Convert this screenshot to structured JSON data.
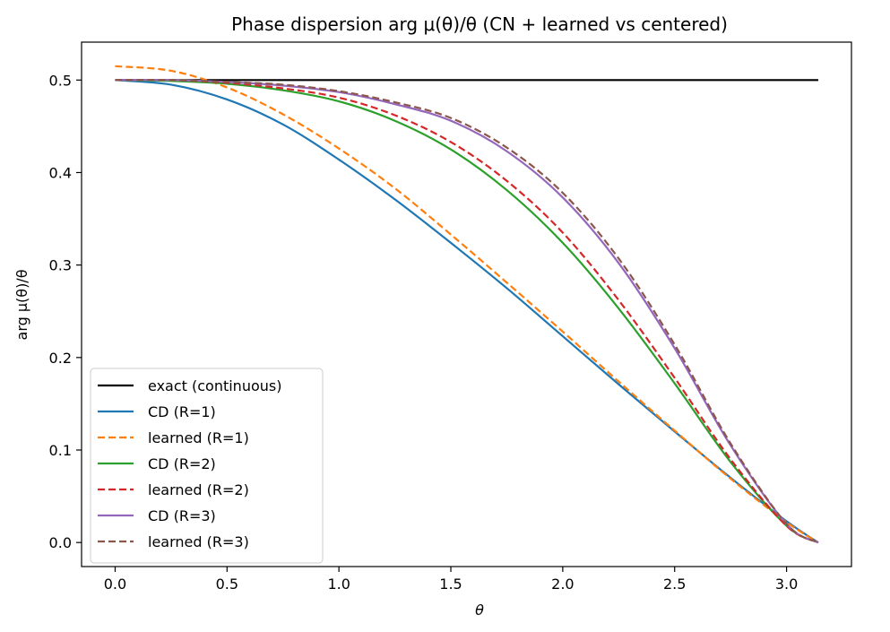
{
  "chart_data": {
    "type": "line",
    "title": "Phase dispersion arg μ(θ)/θ (CN + learned vs centered)",
    "xlabel": "θ",
    "ylabel": "arg μ(θ)/θ",
    "xlim": [
      -0.15,
      3.29
    ],
    "ylim": [
      -0.026,
      0.541
    ],
    "xticks": [
      0.0,
      0.5,
      1.0,
      1.5,
      2.0,
      2.5,
      3.0
    ],
    "xtick_labels": [
      "0.0",
      "0.5",
      "1.0",
      "1.5",
      "2.0",
      "2.5",
      "3.0"
    ],
    "yticks": [
      0.0,
      0.1,
      0.2,
      0.3,
      0.4,
      0.5
    ],
    "ytick_labels": [
      "0.0",
      "0.1",
      "0.2",
      "0.3",
      "0.4",
      "0.5"
    ],
    "grid": false,
    "legend_position": "lower-left",
    "x": [
      0.0,
      0.25,
      0.5,
      0.75,
      1.0,
      1.25,
      1.5,
      1.75,
      2.0,
      2.25,
      2.5,
      2.75,
      3.0,
      3.1416
    ],
    "series": [
      {
        "name": "exact (continuous)",
        "color": "#000000",
        "dash": "solid",
        "values": [
          0.5,
          0.5,
          0.5,
          0.5,
          0.5,
          0.5,
          0.5,
          0.5,
          0.5,
          0.5,
          0.5,
          0.5,
          0.5,
          0.5
        ]
      },
      {
        "name": "CD (R=1)",
        "color": "#1f77b4",
        "dash": "solid",
        "values": [
          0.5,
          0.495,
          0.479,
          0.452,
          0.414,
          0.371,
          0.324,
          0.275,
          0.223,
          0.171,
          0.12,
          0.07,
          0.023,
          0.0
        ]
      },
      {
        "name": "learned (R=1)",
        "color": "#ff7f0e",
        "dash": "dashed",
        "values": [
          0.515,
          0.51,
          0.492,
          0.463,
          0.426,
          0.383,
          0.333,
          0.281,
          0.228,
          0.174,
          0.121,
          0.069,
          0.022,
          0.0
        ]
      },
      {
        "name": "CD (R=2)",
        "color": "#2ca02c",
        "dash": "solid",
        "values": [
          0.5,
          0.499,
          0.496,
          0.489,
          0.477,
          0.456,
          0.425,
          0.381,
          0.324,
          0.253,
          0.172,
          0.087,
          0.018,
          0.0
        ]
      },
      {
        "name": "learned (R=2)",
        "color": "#d62728",
        "dash": "dashed",
        "values": [
          0.5,
          0.5,
          0.497,
          0.491,
          0.481,
          0.462,
          0.433,
          0.391,
          0.335,
          0.262,
          0.178,
          0.09,
          0.018,
          0.0
        ]
      },
      {
        "name": "CD (R=3)",
        "color": "#9467bd",
        "dash": "solid",
        "values": [
          0.5,
          0.5,
          0.498,
          0.494,
          0.487,
          0.474,
          0.456,
          0.423,
          0.373,
          0.302,
          0.21,
          0.105,
          0.02,
          0.0
        ]
      },
      {
        "name": "learned (R=3)",
        "color": "#8c564b",
        "dash": "dashed",
        "values": [
          0.5,
          0.5,
          0.498,
          0.495,
          0.488,
          0.476,
          0.459,
          0.427,
          0.378,
          0.307,
          0.214,
          0.107,
          0.02,
          0.0
        ]
      }
    ]
  }
}
